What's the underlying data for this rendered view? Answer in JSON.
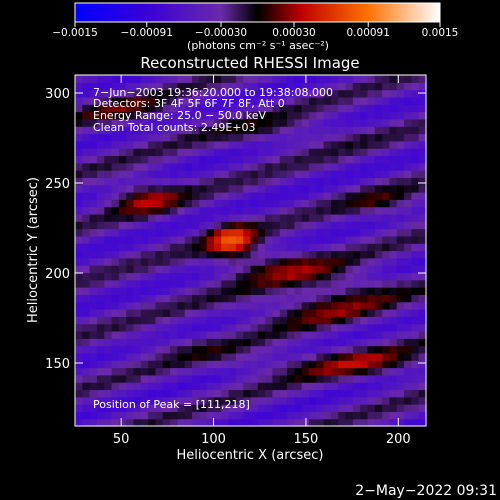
{
  "chart_data": {
    "type": "heatmap",
    "title": "Reconstructed RHESSI Image",
    "xlabel": "Heliocentric X (arcsec)",
    "ylabel": "Heliocentric Y (arcsec)",
    "xlim": [
      25,
      215
    ],
    "ylim": [
      115,
      310
    ],
    "x_ticks": [
      {
        "value": 50,
        "label": "50"
      },
      {
        "value": 100,
        "label": "100"
      },
      {
        "value": 150,
        "label": "150"
      },
      {
        "value": 200,
        "label": "200"
      }
    ],
    "y_ticks": [
      {
        "value": 150,
        "label": "150"
      },
      {
        "value": 200,
        "label": "200"
      },
      {
        "value": 250,
        "label": "250"
      },
      {
        "value": 300,
        "label": "300"
      }
    ],
    "colorbar": {
      "min": -0.0015,
      "max": 0.0015,
      "units_label": "(photons cm⁻² s⁻¹ asec⁻²)",
      "ticks": [
        {
          "value": -0.0015,
          "label": "−0.0015"
        },
        {
          "value": -0.00091,
          "label": "−0.00091"
        },
        {
          "value": -0.0003,
          "label": "−0.00030"
        },
        {
          "value": 0.0003,
          "label": "0.00030"
        },
        {
          "value": 0.00091,
          "label": "0.00091"
        },
        {
          "value": 0.0015,
          "label": "0.0015"
        }
      ]
    },
    "annotations": [
      "7−Jun−2003 19:36:20.000 to 19:38:08.000",
      "Detectors: 3F 4F 5F 6F 7F 8F, Att 0",
      "Energy Range: 25.0 − 50.0 keV",
      "Clean    Total counts: 2.49E+03"
    ],
    "peak_label": "Position of Peak = [111,218]",
    "peak": {
      "x": 111,
      "y": 218
    },
    "features": [
      {
        "x": 110,
        "y": 218,
        "sx": 9,
        "sy": 7,
        "amp": 0.0009
      },
      {
        "x": 62,
        "y": 243,
        "sx": 14,
        "sy": 7,
        "amp": 0.0006
      },
      {
        "x": 132,
        "y": 205,
        "sx": 22,
        "sy": 7,
        "amp": 0.00045
      },
      {
        "x": 170,
        "y": 193,
        "sx": 22,
        "sy": 7,
        "amp": 0.0004
      },
      {
        "x": 152,
        "y": 180,
        "sx": 28,
        "sy": 7,
        "amp": 0.0004
      },
      {
        "x": 178,
        "y": 150,
        "sx": 30,
        "sy": 6,
        "amp": 0.0005
      },
      {
        "x": 140,
        "y": 278,
        "sx": 26,
        "sy": 6,
        "amp": 0.0003
      },
      {
        "x": 55,
        "y": 290,
        "sx": 22,
        "sy": 6,
        "amp": 0.00035
      },
      {
        "x": 195,
        "y": 238,
        "sx": 16,
        "sy": 6,
        "amp": 0.00035
      },
      {
        "x": 80,
        "y": 160,
        "sx": 20,
        "sy": 5,
        "amp": 0.0002
      },
      {
        "x": 118,
        "y": 150,
        "sx": 18,
        "sy": 5,
        "amp": 0.0002
      }
    ],
    "background": -0.00045,
    "stripe_amplitude": 0.00035,
    "stripe_slope": 0.3,
    "stripe_period": 30
  },
  "timestamp": "2−May−2022 09:31"
}
